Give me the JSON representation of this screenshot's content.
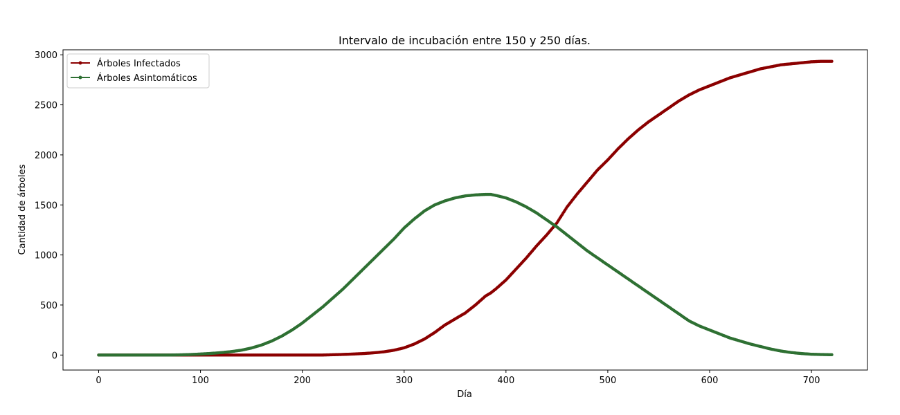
{
  "chart_data": {
    "type": "line",
    "title": "Intervalo de incubación entre 150 y 250 días.",
    "xlabel": "Día",
    "ylabel": "Cantidad de árboles",
    "xlim": [
      -35,
      755
    ],
    "ylim": [
      -150,
      3050
    ],
    "xticks": [
      0,
      100,
      200,
      300,
      400,
      500,
      600,
      700
    ],
    "yticks": [
      0,
      500,
      1000,
      1500,
      2000,
      2500,
      3000
    ],
    "grid": false,
    "legend_position": "upper-left",
    "x": [
      0,
      10,
      20,
      30,
      40,
      50,
      60,
      70,
      80,
      90,
      100,
      110,
      120,
      130,
      140,
      150,
      160,
      170,
      180,
      190,
      200,
      210,
      220,
      230,
      240,
      250,
      260,
      270,
      280,
      290,
      300,
      310,
      320,
      330,
      340,
      350,
      360,
      370,
      380,
      385,
      390,
      400,
      410,
      420,
      430,
      440,
      450,
      460,
      470,
      480,
      490,
      500,
      510,
      520,
      530,
      540,
      550,
      560,
      570,
      580,
      590,
      600,
      610,
      620,
      630,
      640,
      650,
      660,
      670,
      680,
      690,
      700,
      710,
      720
    ],
    "series": [
      {
        "name": "Árboles Infectados",
        "color": "#8b0000",
        "values": [
          0,
          0,
          0,
          0,
          0,
          0,
          0,
          0,
          0,
          0,
          0,
          0,
          0,
          0,
          0,
          0,
          0,
          0,
          0,
          0,
          0,
          0,
          0,
          3,
          6,
          10,
          15,
          22,
          32,
          48,
          72,
          110,
          160,
          225,
          300,
          360,
          420,
          500,
          590,
          620,
          660,
          750,
          860,
          970,
          1090,
          1200,
          1320,
          1480,
          1610,
          1730,
          1850,
          1950,
          2060,
          2160,
          2250,
          2330,
          2400,
          2470,
          2540,
          2600,
          2650,
          2690,
          2730,
          2770,
          2800,
          2830,
          2860,
          2880,
          2900,
          2910,
          2920,
          2930,
          2935,
          2935
        ]
      },
      {
        "name": "Árboles Asintomáticos",
        "color": "#2e7033",
        "values": [
          0,
          0,
          0,
          0,
          0,
          0,
          0,
          0,
          2,
          5,
          10,
          16,
          24,
          34,
          48,
          70,
          100,
          140,
          190,
          250,
          320,
          400,
          480,
          570,
          660,
          760,
          860,
          960,
          1060,
          1160,
          1270,
          1360,
          1440,
          1500,
          1540,
          1570,
          1590,
          1600,
          1605,
          1605,
          1595,
          1570,
          1530,
          1480,
          1420,
          1350,
          1280,
          1200,
          1120,
          1040,
          970,
          900,
          830,
          760,
          690,
          620,
          550,
          480,
          410,
          340,
          290,
          250,
          210,
          170,
          140,
          110,
          85,
          60,
          40,
          25,
          15,
          8,
          5,
          3
        ]
      }
    ]
  }
}
